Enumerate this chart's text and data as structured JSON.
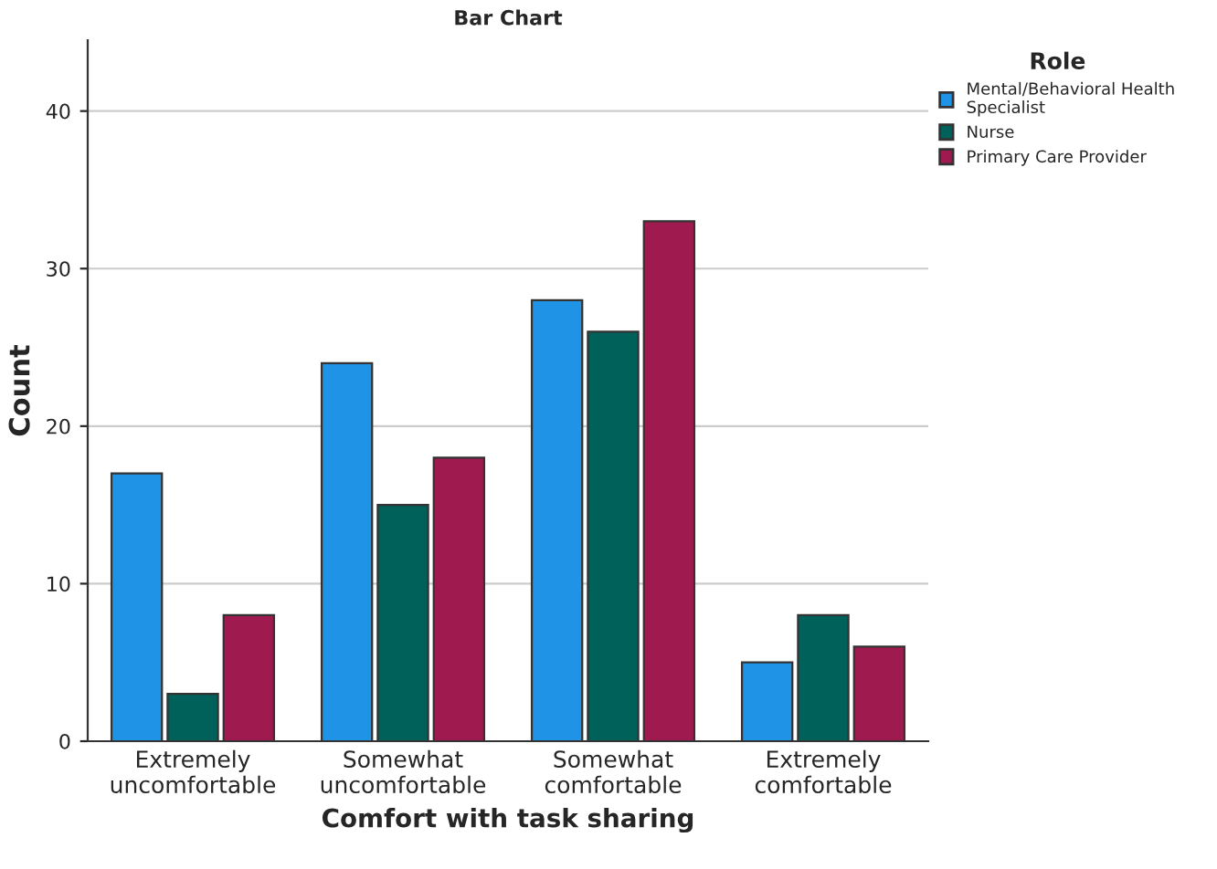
{
  "chart_data": {
    "type": "bar",
    "title": "Bar Chart",
    "xlabel": "Comfort with task sharing",
    "ylabel": "Count",
    "legend_title": "Role",
    "categories": [
      "Extremely\nuncomfortable",
      "Somewhat\nuncomfortable",
      "Somewhat\ncomfortable",
      "Extremely\ncomfortable"
    ],
    "series": [
      {
        "name": "Mental/Behavioral Health\nSpecialist",
        "color": "#1f93e6",
        "values": [
          17,
          24,
          28,
          5
        ]
      },
      {
        "name": "Nurse",
        "color": "#00605a",
        "values": [
          3,
          15,
          26,
          8
        ]
      },
      {
        "name": "Primary Care Provider",
        "color": "#9e1a4f",
        "values": [
          8,
          18,
          33,
          6
        ]
      }
    ],
    "ylim": [
      0,
      44.5
    ],
    "yticks": [
      0,
      10,
      20,
      30,
      40
    ],
    "grid": "y",
    "legend": "top right"
  }
}
